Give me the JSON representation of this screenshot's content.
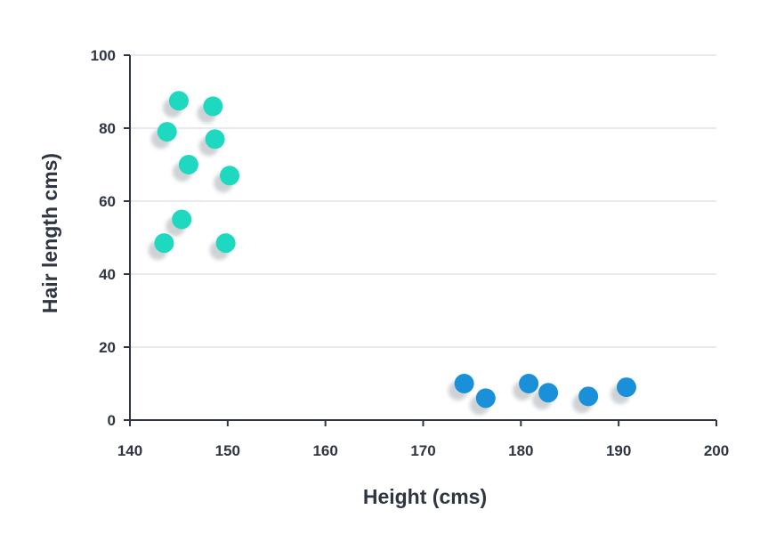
{
  "chart_data": {
    "type": "scatter",
    "title": "",
    "xlabel": "Height (cms)",
    "ylabel": "Hair length cms)",
    "xlim": [
      140,
      200
    ],
    "ylim": [
      0,
      100
    ],
    "x_ticks": [
      "140",
      "150",
      "160",
      "170",
      "180",
      "190",
      "200"
    ],
    "y_ticks": [
      "0",
      "20",
      "40",
      "60",
      "80",
      "100"
    ],
    "grid": "horizontal",
    "series": [
      {
        "color": "#1ed8c0",
        "points": [
          {
            "x": 145.0,
            "y": 87.5
          },
          {
            "x": 148.5,
            "y": 86.0
          },
          {
            "x": 143.8,
            "y": 79.0
          },
          {
            "x": 148.7,
            "y": 77.0
          },
          {
            "x": 146.0,
            "y": 70.0
          },
          {
            "x": 150.2,
            "y": 67.0
          },
          {
            "x": 145.3,
            "y": 55.0
          },
          {
            "x": 143.5,
            "y": 48.5
          },
          {
            "x": 149.8,
            "y": 48.5
          }
        ]
      },
      {
        "color": "#1a90d9",
        "points": [
          {
            "x": 174.2,
            "y": 10.0
          },
          {
            "x": 176.4,
            "y": 6.0
          },
          {
            "x": 180.8,
            "y": 10.0
          },
          {
            "x": 182.8,
            "y": 7.5
          },
          {
            "x": 186.9,
            "y": 6.5
          },
          {
            "x": 190.8,
            "y": 9.0
          }
        ]
      }
    ]
  }
}
